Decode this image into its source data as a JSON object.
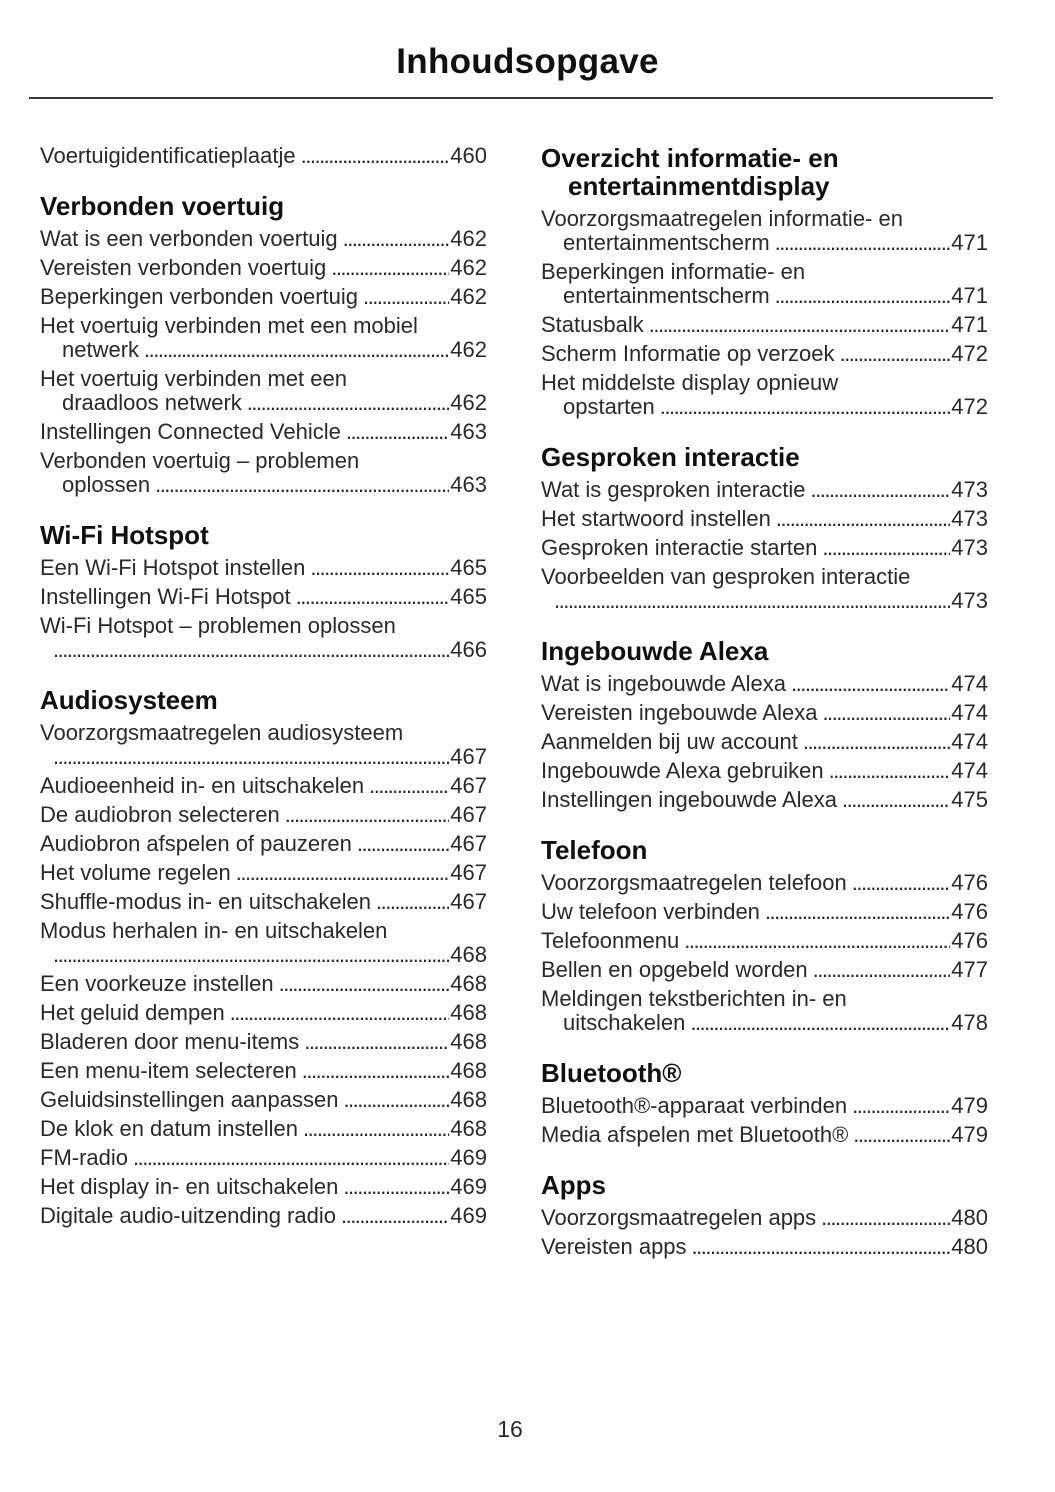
{
  "page": {
    "title": "Inhoudsopgave",
    "number": "16"
  },
  "columns": [
    {
      "sections": [
        {
          "heading": null,
          "entries": [
            {
              "text": "Voertuigidentificatieplaatje",
              "page": "460"
            }
          ]
        },
        {
          "heading": [
            "Verbonden voertuig"
          ],
          "entries": [
            {
              "text": "Wat is een verbonden voertuig",
              "page": "462"
            },
            {
              "text": "Vereisten verbonden voertuig",
              "page": "462"
            },
            {
              "text": "Beperkingen verbonden voertuig",
              "page": "462"
            },
            {
              "text": "Het voertuig verbinden met een mobiel",
              "cont": "netwerk",
              "page": "462"
            },
            {
              "text": "Het voertuig verbinden met een",
              "cont": "draadloos netwerk",
              "page": "462"
            },
            {
              "text": "Instellingen Connected Vehicle",
              "page": "463"
            },
            {
              "text": "Verbonden voertuig – problemen",
              "cont": "oplossen",
              "page": "463"
            }
          ]
        },
        {
          "heading": [
            "Wi-Fi Hotspot"
          ],
          "entries": [
            {
              "text": "Een Wi-Fi Hotspot instellen",
              "page": "465"
            },
            {
              "text": "Instellingen Wi-Fi Hotspot",
              "page": "465"
            },
            {
              "text": "Wi-Fi Hotspot – problemen oplossen",
              "cont": "",
              "page": "466"
            }
          ]
        },
        {
          "heading": [
            "Audiosysteem"
          ],
          "entries": [
            {
              "text": "Voorzorgsmaatregelen audiosysteem",
              "cont": "",
              "page": "467"
            },
            {
              "text": "Audioeenheid in- en uitschakelen",
              "page": "467"
            },
            {
              "text": "De audiobron selecteren",
              "page": "467"
            },
            {
              "text": "Audiobron afspelen of pauzeren",
              "page": "467"
            },
            {
              "text": "Het volume regelen",
              "page": "467"
            },
            {
              "text": "Shuffle-modus in- en uitschakelen",
              "page": "467"
            },
            {
              "text": "Modus herhalen in- en uitschakelen",
              "cont": "",
              "page": "468"
            },
            {
              "text": "Een voorkeuze instellen",
              "page": "468"
            },
            {
              "text": "Het geluid dempen",
              "page": "468"
            },
            {
              "text": "Bladeren door menu-items",
              "page": "468"
            },
            {
              "text": "Een menu-item selecteren",
              "page": "468"
            },
            {
              "text": "Geluidsinstellingen aanpassen",
              "page": "468"
            },
            {
              "text": "De klok en datum instellen",
              "page": "468"
            },
            {
              "text": "FM-radio",
              "page": "469"
            },
            {
              "text": "Het display in- en uitschakelen",
              "page": "469"
            },
            {
              "text": "Digitale audio-uitzending radio",
              "page": "469"
            }
          ]
        }
      ]
    },
    {
      "sections": [
        {
          "heading": [
            "Overzicht informatie- en",
            "entertainmentdisplay"
          ],
          "entries": [
            {
              "text": "Voorzorgsmaatregelen informatie- en",
              "cont": "entertainmentscherm",
              "page": "471"
            },
            {
              "text": "Beperkingen informatie- en",
              "cont": "entertainmentscherm",
              "page": "471"
            },
            {
              "text": "Statusbalk",
              "page": "471"
            },
            {
              "text": "Scherm Informatie op verzoek",
              "page": "472"
            },
            {
              "text": "Het middelste display opnieuw",
              "cont": "opstarten",
              "page": "472"
            }
          ]
        },
        {
          "heading": [
            "Gesproken interactie"
          ],
          "entries": [
            {
              "text": "Wat is gesproken interactie",
              "page": "473"
            },
            {
              "text": "Het startwoord instellen",
              "page": "473"
            },
            {
              "text": "Gesproken interactie starten",
              "page": "473"
            },
            {
              "text": "Voorbeelden van gesproken interactie",
              "cont": "",
              "page": "473"
            }
          ]
        },
        {
          "heading": [
            "Ingebouwde Alexa"
          ],
          "entries": [
            {
              "text": "Wat is ingebouwde Alexa",
              "page": "474"
            },
            {
              "text": "Vereisten ingebouwde Alexa",
              "page": "474"
            },
            {
              "text": "Aanmelden bij uw account",
              "page": "474"
            },
            {
              "text": "Ingebouwde Alexa gebruiken",
              "page": "474"
            },
            {
              "text": "Instellingen ingebouwde Alexa",
              "page": "475"
            }
          ]
        },
        {
          "heading": [
            "Telefoon"
          ],
          "entries": [
            {
              "text": "Voorzorgsmaatregelen telefoon",
              "page": "476"
            },
            {
              "text": "Uw telefoon verbinden",
              "page": "476"
            },
            {
              "text": "Telefoonmenu",
              "page": "476"
            },
            {
              "text": "Bellen en opgebeld worden",
              "page": "477"
            },
            {
              "text": "Meldingen tekstberichten in- en",
              "cont": "uitschakelen",
              "page": "478"
            }
          ]
        },
        {
          "heading": [
            "Bluetooth®"
          ],
          "entries": [
            {
              "text": "Bluetooth®-apparaat verbinden",
              "page": "479"
            },
            {
              "text": "Media afspelen met Bluetooth®",
              "page": "479"
            }
          ]
        },
        {
          "heading": [
            "Apps"
          ],
          "entries": [
            {
              "text": "Voorzorgsmaatregelen apps",
              "page": "480"
            },
            {
              "text": "Vereisten apps",
              "page": "480"
            }
          ]
        }
      ]
    }
  ]
}
